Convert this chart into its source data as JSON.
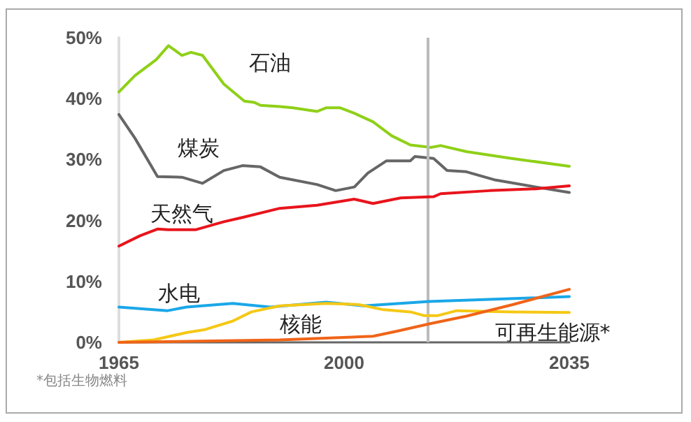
{
  "chart_data": {
    "type": "line",
    "xlim": [
      1965,
      2035
    ],
    "xticks": [
      1965,
      2000,
      2035
    ],
    "ylim": [
      0,
      50
    ],
    "yticks": [
      {
        "value": 0,
        "label": "0%"
      },
      {
        "value": 10,
        "label": "10%"
      },
      {
        "value": 20,
        "label": "20%"
      },
      {
        "value": 30,
        "label": "30%"
      },
      {
        "value": 40,
        "label": "40%"
      },
      {
        "value": 50,
        "label": "50%"
      }
    ],
    "grid": false,
    "legend": false,
    "marker": "none",
    "line_style": "solid",
    "ref_lines": [
      {
        "axis": "x",
        "value": 2013,
        "color": "#bbbbbb"
      }
    ],
    "annotations": [
      "*包括生物燃料"
    ],
    "series": [
      {
        "name": "石油",
        "color": "#8fd018",
        "x": [
          1965,
          1967.5,
          1970.8,
          1972.7,
          1974.8,
          1976.2,
          1978,
          1981.3,
          1984.5,
          1986,
          1987,
          1990,
          1992,
          1995.8,
          1997.2,
          1999.4,
          2001.6,
          2004.5,
          2007.4,
          2010.3,
          2013.5,
          2015,
          2019,
          2026,
          2035
        ],
        "values": [
          41.1,
          43.8,
          46.4,
          48.7,
          47.1,
          47.6,
          47.1,
          42.4,
          39.6,
          39.4,
          38.9,
          38.7,
          38.5,
          37.9,
          38.5,
          38.5,
          37.6,
          36.2,
          33.9,
          32.4,
          32.0,
          32.3,
          31.3,
          30.2,
          28.9
        ]
      },
      {
        "name": "煤炭",
        "color": "#666666",
        "x": [
          1965,
          1967.5,
          1971,
          1974.8,
          1978,
          1981.3,
          1984.2,
          1987,
          1990,
          1995.8,
          1998.7,
          2001.6,
          2003.7,
          2006.6,
          2010.3,
          2011,
          2013.9,
          2016,
          2019,
          2023.3,
          2029.8,
          2035
        ],
        "values": [
          37.4,
          33.5,
          27.2,
          27.1,
          26.1,
          28.2,
          29.0,
          28.8,
          27.1,
          25.9,
          24.9,
          25.5,
          27.8,
          29.8,
          29.8,
          30.5,
          30.2,
          28.2,
          28.0,
          26.7,
          25.5,
          24.6
        ]
      },
      {
        "name": "天然气",
        "color": "#e8141c",
        "x": [
          1965,
          1968.3,
          1971,
          1972.6,
          1977,
          1981.3,
          1984.2,
          1990,
          1995.8,
          2001.6,
          2004.5,
          2008.8,
          2013.9,
          2015,
          2022.6,
          2029.8,
          2035
        ],
        "values": [
          15.8,
          17.5,
          18.6,
          18.5,
          18.5,
          19.8,
          20.5,
          22.0,
          22.5,
          23.5,
          22.8,
          23.7,
          23.9,
          24.4,
          24.9,
          25.2,
          25.7
        ]
      },
      {
        "name": "水电",
        "color": "#1aa7e8",
        "x": [
          1965,
          1972.6,
          1975.5,
          1982.7,
          1988.5,
          1997.2,
          2003,
          2013.2,
          2035
        ],
        "values": [
          5.8,
          5.2,
          5.8,
          6.4,
          5.8,
          6.6,
          6.0,
          6.7,
          7.5
        ]
      },
      {
        "name": "核能",
        "color": "#f5c816",
        "x": [
          1965,
          1970.4,
          1975.5,
          1978.4,
          1982.7,
          1985.6,
          1990,
          1997.2,
          2002.3,
          2005.9,
          2010.3,
          2012.4,
          2014.6,
          2017.5,
          2026.2,
          2035
        ],
        "values": [
          0,
          0.4,
          1.6,
          2.1,
          3.5,
          5.0,
          6.0,
          6.4,
          6.2,
          5.4,
          5.0,
          4.4,
          4.4,
          5.2,
          5.0,
          4.9
        ]
      },
      {
        "name": "可再生能源*",
        "color": "#f06418",
        "x": [
          1965,
          1990,
          2004.5,
          2008.1,
          2013.5,
          2019,
          2026.2,
          2035
        ],
        "values": [
          0,
          0.4,
          1.0,
          1.8,
          3.1,
          4.3,
          6.2,
          8.7
        ]
      }
    ]
  }
}
